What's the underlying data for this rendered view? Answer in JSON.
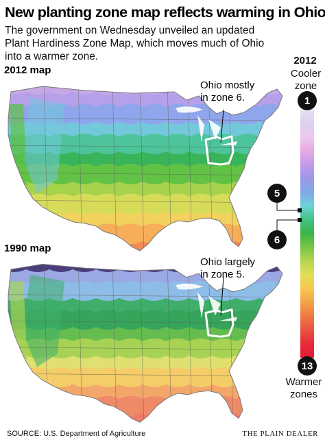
{
  "headline": "New planting zone map reflects warming in Ohio",
  "dek": "The government on Wednesday unveiled an updated Plant Hardiness Zone Map, which moves much of Ohio into a warmer zone.",
  "maps": [
    {
      "label": "2012 map",
      "callout": [
        "Ohio mostly",
        "in zone 6."
      ],
      "bands": [
        "#c5a8e6",
        "#b6a0ea",
        "#8fa6ec",
        "#73c8dc",
        "#4dc49a",
        "#3ab45a",
        "#62c246",
        "#a6d24c",
        "#d6dc58",
        "#f2d15e",
        "#f6ae58",
        "#f08a54"
      ]
    },
    {
      "label": "1990 map",
      "callout": [
        "Ohio largely",
        "in zone 5."
      ],
      "bands": [
        "#4a3f7c",
        "#9aa8e4",
        "#8dbce6",
        "#3fae6a",
        "#36a45a",
        "#64bd4e",
        "#a8d254",
        "#e0e070",
        "#f4cc68",
        "#f3a66a",
        "#ef8a68",
        "#ee7a68"
      ]
    }
  ],
  "legend": {
    "year": "2012",
    "cooler_label": [
      "Cooler",
      "zone"
    ],
    "warmer_label": [
      "Warmer",
      "zones"
    ],
    "badges": {
      "top": "1",
      "mid_upper": "5",
      "mid_lower": "6",
      "bottom": "13"
    },
    "gradient_colors": [
      "#e6e1f4",
      "#dcd0f0",
      "#eec7ec",
      "#e7a8e6",
      "#c49aea",
      "#9c98e8",
      "#7fa8e8",
      "#6fd2d8",
      "#3fc285",
      "#3cb546",
      "#7ac644",
      "#b6d64e",
      "#e4de58",
      "#f5c84e",
      "#f2a348",
      "#ee7a44",
      "#ea5240",
      "#e72b3a",
      "#e51a36"
    ]
  },
  "colors": {
    "ohio_outline": "#ffffff",
    "state_borders": "#5b5b5b",
    "badge": "#111111"
  },
  "source": "SOURCE: U.S. Department of Agriculture",
  "credit": "THE PLAIN DEALER"
}
